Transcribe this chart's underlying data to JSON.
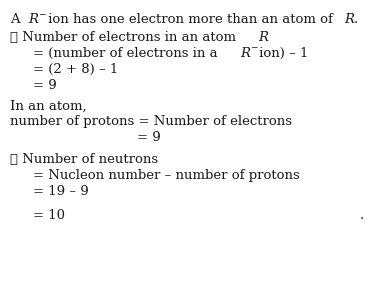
{
  "background_color": "#ffffff",
  "figsize": [
    3.91,
    2.92
  ],
  "dpi": 100,
  "text_color": "#1a1a1a",
  "font_family": "DejaVu Serif",
  "font_size": 9.5
}
